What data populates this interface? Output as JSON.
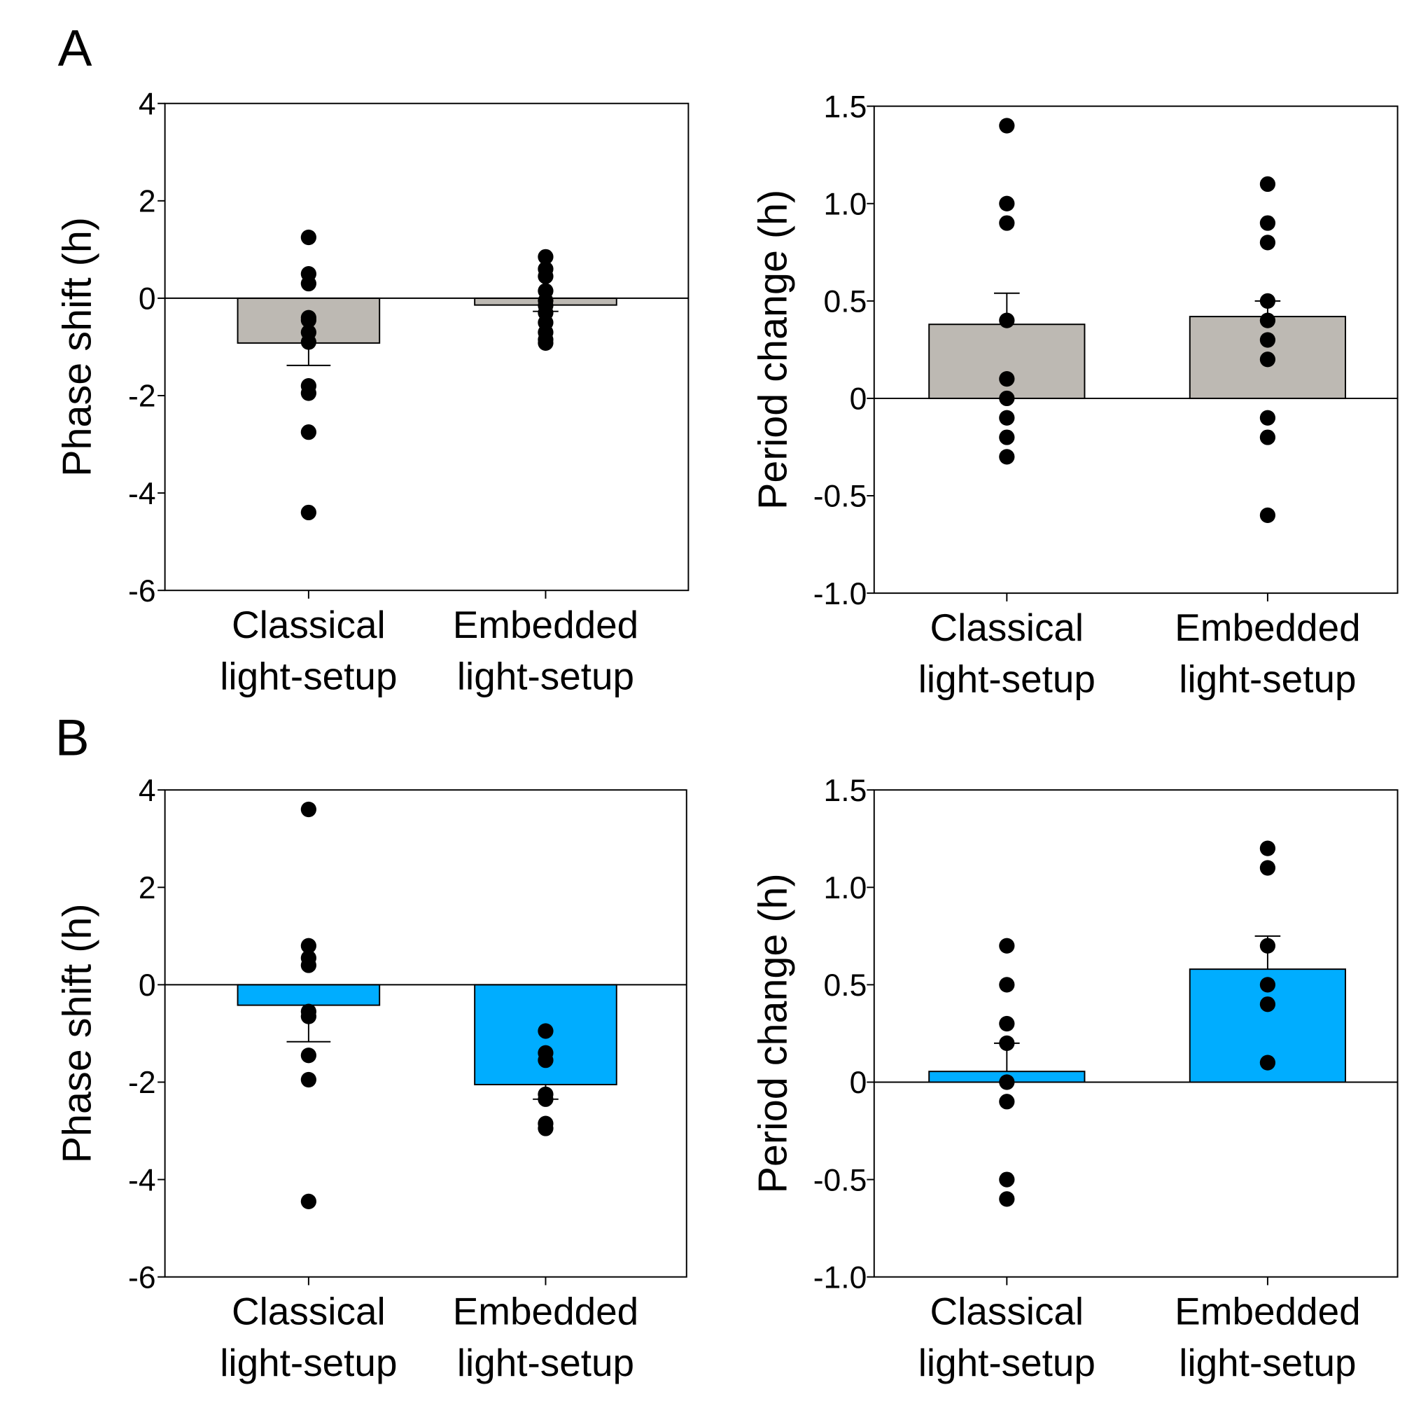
{
  "panel_labels": [
    "A",
    "B"
  ],
  "colors": {
    "gray_bar": "#bdb9b3",
    "blue_bar": "#00adff",
    "point": "#000000"
  },
  "chart_data": [
    {
      "type": "bar",
      "panel": "A",
      "position": "top-left",
      "title": "",
      "xlabel": "",
      "ylabel": "Phase shift (h)",
      "ylim": [
        -6,
        4
      ],
      "yticks": [
        4,
        2,
        0,
        -2,
        -4,
        -6
      ],
      "ytick_labels": [
        "4",
        "2",
        "0",
        "-2",
        "-4",
        "-6"
      ],
      "categories": [
        "Classical\nlight-setup",
        "Embedded\nlight-setup"
      ],
      "category_lines": [
        [
          "Classical",
          "light-setup"
        ],
        [
          "Embedded",
          "light-setup"
        ]
      ],
      "bar_color": "#bdb9b3",
      "means": [
        -0.92,
        -0.14
      ],
      "errors": [
        -1.38,
        -0.27
      ],
      "points": [
        [
          1.25,
          0.5,
          0.3,
          -0.4,
          -0.45,
          -0.7,
          -0.9,
          -1.8,
          -1.95,
          -2.75,
          -4.4
        ],
        [
          0.85,
          0.6,
          0.45,
          0.15,
          -0.05,
          -0.15,
          -0.3,
          -0.5,
          -0.7,
          -0.85,
          -0.92
        ]
      ]
    },
    {
      "type": "bar",
      "panel": "A",
      "position": "top-right",
      "title": "",
      "xlabel": "",
      "ylabel": "Period change (h)",
      "ylim": [
        -1.0,
        1.5
      ],
      "yticks": [
        1.5,
        1.0,
        0.5,
        0,
        -0.5,
        -1.0
      ],
      "ytick_labels": [
        "1.5",
        "1.0",
        "0.5",
        "0",
        "-0.5",
        "-1.0"
      ],
      "categories": [
        "Classical\nlight-setup",
        "Embedded\nlight-setup"
      ],
      "category_lines": [
        [
          "Classical",
          "light-setup"
        ],
        [
          "Embedded",
          "light-setup"
        ]
      ],
      "bar_color": "#bdb9b3",
      "means": [
        0.38,
        0.42
      ],
      "errors": [
        0.54,
        0.5
      ],
      "points": [
        [
          1.4,
          1.0,
          0.9,
          0.4,
          0.1,
          0.0,
          -0.1,
          -0.2,
          -0.3
        ],
        [
          1.1,
          0.9,
          0.8,
          0.5,
          0.4,
          0.3,
          0.2,
          -0.1,
          -0.2,
          -0.6
        ]
      ]
    },
    {
      "type": "bar",
      "panel": "B",
      "position": "bottom-left",
      "title": "",
      "xlabel": "",
      "ylabel": "Phase shift (h)",
      "ylim": [
        -6,
        4
      ],
      "yticks": [
        4,
        2,
        0,
        -2,
        -4,
        -6
      ],
      "ytick_labels": [
        "4",
        "2",
        "0",
        "-2",
        "-4",
        "-6"
      ],
      "categories": [
        "Classical\nlight-setup",
        "Embedded\nlight-setup"
      ],
      "category_lines": [
        [
          "Classical",
          "light-setup"
        ],
        [
          "Embedded",
          "light-setup"
        ]
      ],
      "bar_color": "#00adff",
      "means": [
        -0.42,
        -2.05
      ],
      "errors": [
        -1.17,
        -2.35
      ],
      "points": [
        [
          3.6,
          0.8,
          0.55,
          0.4,
          -0.55,
          -0.65,
          -1.45,
          -1.95,
          -4.45
        ],
        [
          -0.95,
          -1.4,
          -1.55,
          -2.25,
          -2.35,
          -2.85,
          -2.95
        ]
      ]
    },
    {
      "type": "bar",
      "panel": "B",
      "position": "bottom-right",
      "title": "",
      "xlabel": "",
      "ylabel": "Period change (h)",
      "ylim": [
        -1.0,
        1.5
      ],
      "yticks": [
        1.5,
        1.0,
        0.5,
        0,
        -0.5,
        -1.0
      ],
      "ytick_labels": [
        "1.5",
        "1.0",
        "0.5",
        "0",
        "-0.5",
        "-1.0"
      ],
      "categories": [
        "Classical\nlight-setup",
        "Embedded\nlight-setup"
      ],
      "category_lines": [
        [
          "Classical",
          "light-setup"
        ],
        [
          "Embedded",
          "light-setup"
        ]
      ],
      "bar_color": "#00adff",
      "means": [
        0.055,
        0.58
      ],
      "errors": [
        0.2,
        0.75
      ],
      "points": [
        [
          0.7,
          0.5,
          0.3,
          0.2,
          0.0,
          -0.1,
          -0.5,
          -0.6
        ],
        [
          1.2,
          1.1,
          0.7,
          0.5,
          0.4,
          0.1
        ]
      ]
    }
  ]
}
